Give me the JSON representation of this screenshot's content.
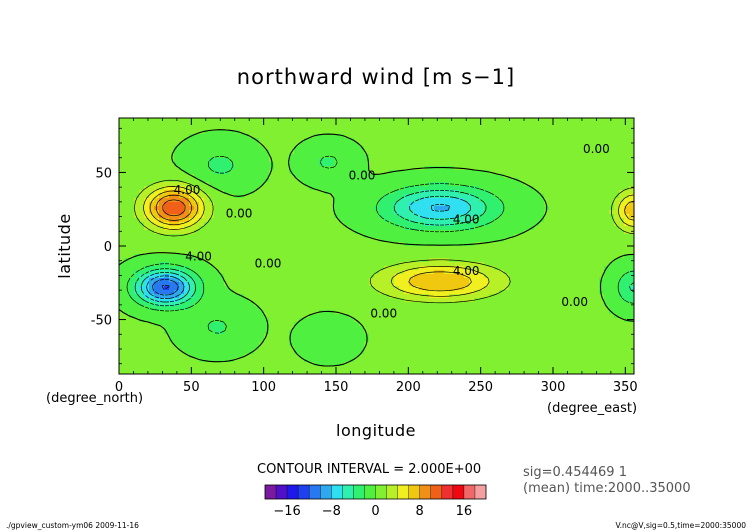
{
  "chart_data": {
    "type": "heatmap",
    "title": "northward wind [m s−1]",
    "xlabel": "longitude",
    "ylabel": "latitude",
    "x_unit": "(degree_east)",
    "y_unit": "(degree_north)",
    "xlim": [
      0,
      356
    ],
    "ylim": [
      -87,
      87
    ],
    "x_ticks": [
      0,
      50,
      100,
      150,
      200,
      250,
      300,
      350
    ],
    "y_ticks": [
      -50,
      0,
      50
    ],
    "contour_interval_text": "CONTOUR INTERVAL = 2.000E+00",
    "sig_text": "sig=0.454469  1",
    "mean_text": "(mean) time:2000..35000",
    "footer_left": "./gpview_custom-ym06  2009-11-16",
    "footer_right": "V.nc@V,sig=0.5,time=2000:35000",
    "contour_labels": [
      {
        "text": "0.00",
        "lon": 168,
        "lat": 48
      },
      {
        "text": "0.00",
        "lon": 330,
        "lat": 66
      },
      {
        "text": "4.00",
        "lon": 47,
        "lat": 38
      },
      {
        "text": "0.00",
        "lon": 83,
        "lat": 22
      },
      {
        "text": "4.00",
        "lon": 240,
        "lat": 18
      },
      {
        "text": "4.00",
        "lon": 55,
        "lat": -7
      },
      {
        "text": "0.00",
        "lon": 103,
        "lat": -12
      },
      {
        "text": "4.00",
        "lon": 240,
        "lat": -17
      },
      {
        "text": "0.00",
        "lon": 315,
        "lat": -38
      },
      {
        "text": "0.00",
        "lon": 183,
        "lat": -46
      }
    ],
    "features": [
      {
        "lon": 38,
        "lat": 26,
        "amp": 11.5,
        "slon": 20,
        "slat": 14
      },
      {
        "lon": 32,
        "lat": -28,
        "amp": -12.5,
        "slon": 20,
        "slat": 12
      },
      {
        "lon": 222,
        "lat": 26,
        "amp": -8.5,
        "slon": 38,
        "slat": 14
      },
      {
        "lon": 222,
        "lat": -24,
        "amp": 7.8,
        "slon": 40,
        "slat": 12
      },
      {
        "lon": 145,
        "lat": 57,
        "amp": -2.5,
        "slon": 17,
        "slat": 12
      },
      {
        "lon": 145,
        "lat": -63,
        "amp": -2.2,
        "slon": 17,
        "slat": 12
      },
      {
        "lon": 70,
        "lat": 55,
        "amp": -2.6,
        "slon": 22,
        "slat": 15
      },
      {
        "lon": 68,
        "lat": -55,
        "amp": -2.4,
        "slon": 22,
        "slat": 15
      },
      {
        "lon": 356,
        "lat": 24,
        "amp": 7.5,
        "slon": 13,
        "slat": 13
      },
      {
        "lon": 356,
        "lat": -28,
        "amp": -4.5,
        "slon": 13,
        "slat": 13
      }
    ],
    "colorbar": {
      "ticks": [
        "−16",
        "−8",
        "0",
        "8",
        "16"
      ],
      "tick_levels": [
        -16,
        -8,
        0,
        8,
        16
      ],
      "levels": [
        -20,
        -18,
        -16,
        -14,
        -12,
        -10,
        -8,
        -6,
        -4,
        -2,
        0,
        2,
        4,
        6,
        8,
        10,
        12,
        14,
        16,
        18,
        20
      ],
      "colors": [
        "#7a1aa0",
        "#5010c8",
        "#1e18e8",
        "#2040f0",
        "#2878f0",
        "#30a8f0",
        "#30e0f0",
        "#30f0b0",
        "#30f070",
        "#50f040",
        "#80f030",
        "#b8f028",
        "#f0f020",
        "#f0c810",
        "#f09018",
        "#f06018",
        "#f03030",
        "#f00810",
        "#f06868",
        "#f4a0a0"
      ]
    }
  }
}
